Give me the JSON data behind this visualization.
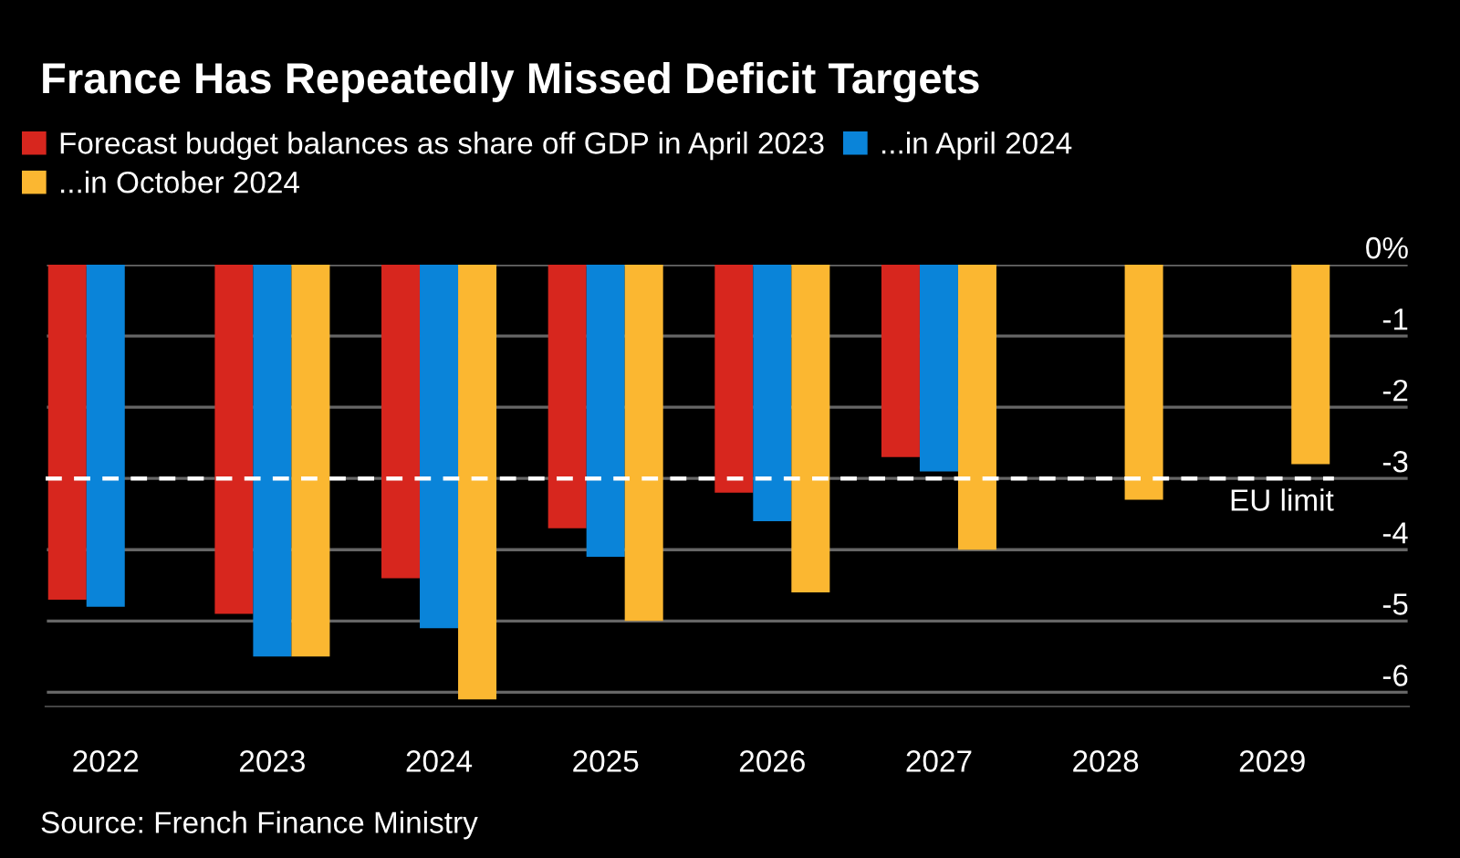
{
  "chart_data": {
    "type": "bar",
    "title": "France Has Repeatedly Missed Deficit Targets",
    "categories": [
      "2022",
      "2023",
      "2024",
      "2025",
      "2026",
      "2027",
      "2028",
      "2029"
    ],
    "series": [
      {
        "name": "Forecast budget balances as share off GDP in April 2023",
        "color": "#d7261e",
        "values": [
          -4.7,
          -4.9,
          -4.4,
          -3.7,
          -3.2,
          -2.7,
          null,
          null
        ]
      },
      {
        "name": "...in April 2024",
        "color": "#0a84d9",
        "values": [
          -4.8,
          -5.5,
          -5.1,
          -4.1,
          -3.6,
          -2.9,
          null,
          null
        ]
      },
      {
        "name": "...in October 2024",
        "color": "#fbb731",
        "values": [
          null,
          -5.5,
          -6.1,
          -5.0,
          -4.6,
          -4.0,
          -3.3,
          -2.8
        ]
      }
    ],
    "ylim": [
      -6.2,
      0
    ],
    "yticks": [
      {
        "value": 0,
        "label": "0%"
      },
      -1,
      -2,
      -3,
      -4,
      -5,
      -6
    ],
    "ref_lines": [
      {
        "axis": "y",
        "value": -3,
        "label": "EU limit",
        "color": "#ffffff",
        "line_style": "dashed"
      }
    ],
    "grid": "y",
    "legend": "top",
    "annotations": [
      "Source: French Finance Ministry"
    ]
  }
}
